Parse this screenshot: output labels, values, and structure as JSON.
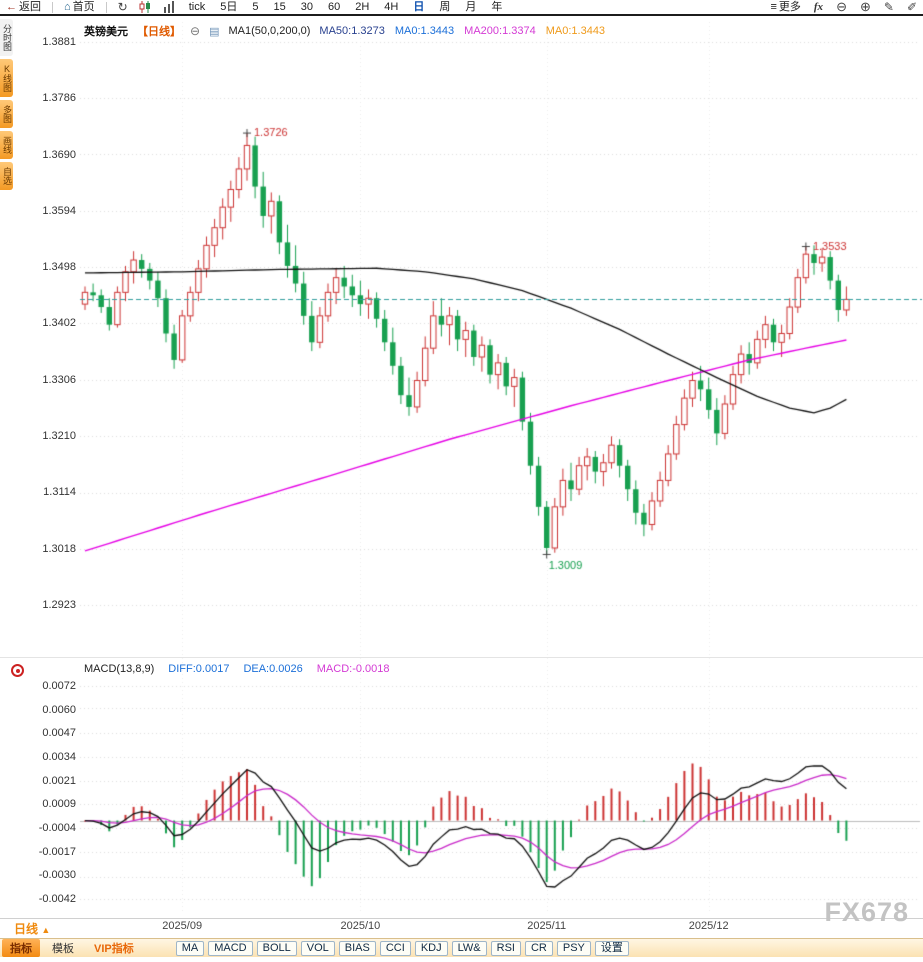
{
  "app": {
    "watermark": "FX678"
  },
  "toolbar": {
    "back_label": "返回",
    "home_label": "首页",
    "timeframes": [
      "tick",
      "5日",
      "5",
      "15",
      "30",
      "60",
      "2H",
      "4H",
      "日",
      "周",
      "月",
      "年"
    ],
    "active_timeframe": "日",
    "more_label": "更多",
    "fx_label": "fx"
  },
  "left_sidebar": {
    "tabs": [
      {
        "label": "分时图",
        "variant": "light"
      },
      {
        "label": "K线图",
        "variant": "orange"
      },
      {
        "label": "多图",
        "variant": "orange"
      },
      {
        "label": "画线",
        "variant": "orange"
      },
      {
        "label": "自选",
        "variant": "orange"
      }
    ]
  },
  "symbol_header": {
    "name": "英镑美元",
    "period": "【日线】",
    "ma_label": "MA1(50,0,200,0)",
    "values": [
      {
        "text": "MA50:1.3273",
        "color": "#29418f"
      },
      {
        "text": "MA0:1.3443",
        "color": "#1b6fd8"
      },
      {
        "text": "MA200:1.3374",
        "color": "#d43ad4"
      },
      {
        "text": "MA0:1.3443",
        "color": "#ef9a1a"
      }
    ]
  },
  "macd_header": {
    "label": "MACD(13,8,9)",
    "values": [
      {
        "text": "DIFF:0.0017",
        "color": "#1b6fd8"
      },
      {
        "text": "DEA:0.0026",
        "color": "#1b6fd8"
      },
      {
        "text": "MACD:-0.0018",
        "color": "#d43ad4"
      }
    ]
  },
  "bottom": {
    "period_label": "日线",
    "tabs": [
      {
        "label": "指标",
        "variant": "active"
      },
      {
        "label": "模板",
        "variant": "plain"
      },
      {
        "label": "VIP指标",
        "variant": "vip"
      }
    ],
    "buttons": [
      "MA",
      "MACD",
      "BOLL",
      "VOL",
      "BIAS",
      "CCI",
      "KDJ",
      "LW&",
      "RSI",
      "CR",
      "PSY",
      "设置"
    ]
  },
  "chart_data": {
    "type": "candlestick",
    "symbol": "英镑美元 GBP/USD",
    "timeframe": "日线",
    "price_ticks": [
      1.3881,
      1.3786,
      1.369,
      1.3594,
      1.3498,
      1.3402,
      1.3306,
      1.321,
      1.3114,
      1.3018,
      1.2923
    ],
    "macd_ticks": [
      0.0072,
      0.006,
      0.0047,
      0.0034,
      0.0021,
      0.0009,
      -0.0004,
      -0.0017,
      -0.003,
      -0.0042
    ],
    "last_price": 1.3443,
    "indicator_values": {
      "ma50": 1.3273,
      "ma200": 1.3374,
      "ma0": 1.3443,
      "diff": 0.0017,
      "dea": 0.0026,
      "macd": -0.0018
    },
    "macd_params": {
      "fast": 8,
      "slow": 13,
      "signal": 9
    },
    "month_labels": [
      {
        "label": "2025/09",
        "index": 12
      },
      {
        "label": "2025/10",
        "index": 34
      },
      {
        "label": "2025/11",
        "index": 57
      },
      {
        "label": "2025/12",
        "index": 77
      }
    ],
    "annotations": [
      {
        "index": 20,
        "price": 1.3726,
        "label": "1.3726",
        "type": "high"
      },
      {
        "index": 89,
        "price": 1.3533,
        "label": "1.3533",
        "type": "high"
      },
      {
        "index": 57,
        "price": 1.3009,
        "label": "1.3009",
        "type": "low"
      }
    ],
    "colors": {
      "up": "#cc3333",
      "down": "#18a050",
      "ma50": "#111111",
      "ma200": "#e500e5",
      "diff": "#111111",
      "dea": "#c929c9",
      "last_price_line": "#2f9d9d",
      "grid": "#dcdcdc"
    },
    "ma50_anchors": [
      [
        0,
        1.3488
      ],
      [
        12,
        1.349
      ],
      [
        24,
        1.3494
      ],
      [
        36,
        1.3496
      ],
      [
        42,
        1.349
      ],
      [
        48,
        1.3478
      ],
      [
        54,
        1.3458
      ],
      [
        60,
        1.3428
      ],
      [
        66,
        1.3392
      ],
      [
        72,
        1.335
      ],
      [
        78,
        1.331
      ],
      [
        83,
        1.3278
      ],
      [
        87,
        1.3258
      ],
      [
        90,
        1.325
      ],
      [
        92,
        1.3258
      ],
      [
        94,
        1.3273
      ]
    ],
    "ma200_anchors": [
      [
        0,
        1.3015
      ],
      [
        15,
        1.308
      ],
      [
        30,
        1.3142
      ],
      [
        45,
        1.3205
      ],
      [
        60,
        1.3262
      ],
      [
        72,
        1.3305
      ],
      [
        82,
        1.334
      ],
      [
        89,
        1.336
      ],
      [
        94,
        1.3374
      ]
    ],
    "candles": [
      [
        "08/14",
        1.3435,
        1.3465,
        1.3425,
        1.3455
      ],
      [
        "08/15",
        1.3455,
        1.347,
        1.344,
        1.345
      ],
      [
        "08/18",
        1.345,
        1.346,
        1.342,
        1.343
      ],
      [
        "08/19",
        1.343,
        1.3445,
        1.339,
        1.34
      ],
      [
        "08/20",
        1.34,
        1.3465,
        1.3395,
        1.3455
      ],
      [
        "08/21",
        1.3455,
        1.35,
        1.344,
        1.349
      ],
      [
        "08/22",
        1.349,
        1.3525,
        1.347,
        1.351
      ],
      [
        "08/25",
        1.351,
        1.352,
        1.348,
        1.3495
      ],
      [
        "08/26",
        1.3495,
        1.3505,
        1.346,
        1.3475
      ],
      [
        "08/27",
        1.3475,
        1.349,
        1.343,
        1.3445
      ],
      [
        "08/28",
        1.3445,
        1.346,
        1.337,
        1.3385
      ],
      [
        "08/29",
        1.3385,
        1.34,
        1.3325,
        1.334
      ],
      [
        "09/01",
        1.334,
        1.3425,
        1.3335,
        1.3415
      ],
      [
        "09/02",
        1.3415,
        1.3465,
        1.3405,
        1.3455
      ],
      [
        "09/03",
        1.3455,
        1.351,
        1.344,
        1.3495
      ],
      [
        "09/04",
        1.3495,
        1.355,
        1.348,
        1.3535
      ],
      [
        "09/05",
        1.3535,
        1.358,
        1.3515,
        1.3565
      ],
      [
        "09/08",
        1.3565,
        1.3615,
        1.3545,
        1.36
      ],
      [
        "09/09",
        1.36,
        1.3645,
        1.3575,
        1.363
      ],
      [
        "09/10",
        1.363,
        1.3685,
        1.3615,
        1.3665
      ],
      [
        "09/11",
        1.3665,
        1.3726,
        1.3645,
        1.3705
      ],
      [
        "09/12",
        1.3705,
        1.372,
        1.3615,
        1.3635
      ],
      [
        "09/15",
        1.3635,
        1.366,
        1.3565,
        1.3585
      ],
      [
        "09/16",
        1.3585,
        1.3625,
        1.3555,
        1.361
      ],
      [
        "09/17",
        1.361,
        1.362,
        1.352,
        1.354
      ],
      [
        "09/18",
        1.354,
        1.357,
        1.348,
        1.35
      ],
      [
        "09/19",
        1.35,
        1.3535,
        1.3455,
        1.347
      ],
      [
        "09/22",
        1.347,
        1.349,
        1.34,
        1.3415
      ],
      [
        "09/23",
        1.3415,
        1.344,
        1.3355,
        1.337
      ],
      [
        "09/24",
        1.337,
        1.343,
        1.336,
        1.3415
      ],
      [
        "09/25",
        1.3415,
        1.347,
        1.3405,
        1.3455
      ],
      [
        "09/26",
        1.3455,
        1.3495,
        1.3435,
        1.348
      ],
      [
        "09/29",
        1.348,
        1.35,
        1.3445,
        1.3465
      ],
      [
        "09/30",
        1.3465,
        1.3485,
        1.343,
        1.345
      ],
      [
        "10/01",
        1.345,
        1.3475,
        1.3415,
        1.3435
      ],
      [
        "10/02",
        1.3435,
        1.346,
        1.341,
        1.3445
      ],
      [
        "10/03",
        1.3445,
        1.3455,
        1.3395,
        1.341
      ],
      [
        "10/06",
        1.341,
        1.3425,
        1.3355,
        1.337
      ],
      [
        "10/07",
        1.337,
        1.3395,
        1.3315,
        1.333
      ],
      [
        "10/08",
        1.333,
        1.3345,
        1.3265,
        1.328
      ],
      [
        "10/09",
        1.328,
        1.331,
        1.3245,
        1.326
      ],
      [
        "10/10",
        1.326,
        1.332,
        1.325,
        1.3305
      ],
      [
        "10/13",
        1.3305,
        1.338,
        1.3295,
        1.336
      ],
      [
        "10/14",
        1.336,
        1.344,
        1.335,
        1.3415
      ],
      [
        "10/15",
        1.3415,
        1.3445,
        1.338,
        1.34
      ],
      [
        "10/16",
        1.34,
        1.343,
        1.3365,
        1.3415
      ],
      [
        "10/17",
        1.3415,
        1.3425,
        1.3355,
        1.3375
      ],
      [
        "10/20",
        1.3375,
        1.3405,
        1.3345,
        1.339
      ],
      [
        "10/21",
        1.339,
        1.34,
        1.333,
        1.3345
      ],
      [
        "10/22",
        1.3345,
        1.338,
        1.332,
        1.3365
      ],
      [
        "10/23",
        1.3365,
        1.3375,
        1.33,
        1.3315
      ],
      [
        "10/24",
        1.3315,
        1.335,
        1.329,
        1.3335
      ],
      [
        "10/27",
        1.3335,
        1.3345,
        1.328,
        1.3295
      ],
      [
        "10/28",
        1.3295,
        1.3325,
        1.326,
        1.331
      ],
      [
        "10/29",
        1.331,
        1.332,
        1.322,
        1.3235
      ],
      [
        "10/30",
        1.3235,
        1.325,
        1.3145,
        1.316
      ],
      [
        "10/31",
        1.316,
        1.3175,
        1.3075,
        1.309
      ],
      [
        "11/03",
        1.309,
        1.31,
        1.3009,
        1.302
      ],
      [
        "11/04",
        1.302,
        1.3105,
        1.3012,
        1.309
      ],
      [
        "11/05",
        1.309,
        1.3155,
        1.3075,
        1.3135
      ],
      [
        "11/06",
        1.3135,
        1.3165,
        1.31,
        1.312
      ],
      [
        "11/07",
        1.312,
        1.3175,
        1.311,
        1.316
      ],
      [
        "11/10",
        1.316,
        1.319,
        1.3135,
        1.3175
      ],
      [
        "11/11",
        1.3175,
        1.3185,
        1.313,
        1.315
      ],
      [
        "11/12",
        1.315,
        1.318,
        1.3125,
        1.3165
      ],
      [
        "11/13",
        1.3165,
        1.321,
        1.3155,
        1.3195
      ],
      [
        "11/14",
        1.3195,
        1.3205,
        1.314,
        1.316
      ],
      [
        "11/17",
        1.316,
        1.317,
        1.31,
        1.312
      ],
      [
        "11/18",
        1.312,
        1.3135,
        1.306,
        1.308
      ],
      [
        "11/19",
        1.308,
        1.3095,
        1.304,
        1.306
      ],
      [
        "11/20",
        1.306,
        1.3115,
        1.305,
        1.31
      ],
      [
        "11/21",
        1.31,
        1.315,
        1.309,
        1.3135
      ],
      [
        "11/24",
        1.3135,
        1.3195,
        1.3125,
        1.318
      ],
      [
        "11/25",
        1.318,
        1.3245,
        1.317,
        1.323
      ],
      [
        "11/26",
        1.323,
        1.329,
        1.322,
        1.3275
      ],
      [
        "11/27",
        1.3275,
        1.332,
        1.326,
        1.3305
      ],
      [
        "11/28",
        1.3305,
        1.333,
        1.327,
        1.329
      ],
      [
        "12/01",
        1.329,
        1.331,
        1.324,
        1.3255
      ],
      [
        "12/02",
        1.3255,
        1.3275,
        1.3195,
        1.3215
      ],
      [
        "12/03",
        1.3215,
        1.328,
        1.3205,
        1.3265
      ],
      [
        "12/04",
        1.3265,
        1.333,
        1.3255,
        1.3315
      ],
      [
        "12/05",
        1.3315,
        1.3365,
        1.33,
        1.335
      ],
      [
        "12/08",
        1.335,
        1.337,
        1.3315,
        1.3335
      ],
      [
        "12/09",
        1.3335,
        1.339,
        1.3325,
        1.3375
      ],
      [
        "12/10",
        1.3375,
        1.3415,
        1.336,
        1.34
      ],
      [
        "12/11",
        1.34,
        1.341,
        1.3355,
        1.337
      ],
      [
        "12/12",
        1.337,
        1.34,
        1.3345,
        1.3385
      ],
      [
        "12/15",
        1.3385,
        1.3445,
        1.3375,
        1.343
      ],
      [
        "12/16",
        1.343,
        1.3495,
        1.342,
        1.348
      ],
      [
        "12/17",
        1.348,
        1.3533,
        1.347,
        1.352
      ],
      [
        "12/18",
        1.352,
        1.3535,
        1.3485,
        1.3505
      ],
      [
        "12/19",
        1.3505,
        1.353,
        1.349,
        1.3515
      ],
      [
        "12/22",
        1.3515,
        1.3525,
        1.346,
        1.3475
      ],
      [
        "12/23",
        1.3475,
        1.3485,
        1.3405,
        1.3425
      ],
      [
        "12/24",
        1.3425,
        1.3465,
        1.3415,
        1.3443
      ]
    ]
  }
}
